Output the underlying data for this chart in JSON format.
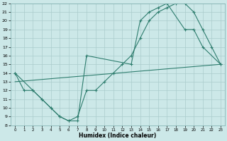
{
  "line1_x": [
    0,
    1,
    2,
    3,
    4,
    5,
    6,
    7,
    8,
    9,
    10,
    11,
    12,
    13,
    14,
    15,
    16,
    17,
    18,
    19,
    20,
    21,
    22,
    23
  ],
  "line1_y": [
    14,
    12,
    12,
    11,
    10,
    9,
    8.5,
    9,
    12,
    12,
    13,
    14,
    15,
    16,
    18,
    20,
    21,
    21.5,
    22,
    22,
    21,
    19,
    17,
    15
  ],
  "line2_x": [
    0,
    2,
    3,
    4,
    5,
    6,
    7,
    8,
    13,
    14,
    15,
    16,
    17,
    19,
    20,
    21,
    23
  ],
  "line2_y": [
    14,
    12,
    11,
    10,
    9,
    8.5,
    8.5,
    16,
    15,
    20,
    21,
    21.5,
    22,
    19,
    19,
    17,
    15
  ],
  "line3_x": [
    0,
    23
  ],
  "line3_y": [
    13,
    15
  ],
  "line_color": "#2e7d6e",
  "bg_color": "#cce8e8",
  "grid_color": "#aacccc",
  "xlabel": "Humidex (Indice chaleur)",
  "xlim": [
    -0.5,
    23.5
  ],
  "ylim": [
    8,
    22
  ],
  "yticks": [
    8,
    9,
    10,
    11,
    12,
    13,
    14,
    15,
    16,
    17,
    18,
    19,
    20,
    21,
    22
  ],
  "xticks": [
    0,
    1,
    2,
    3,
    4,
    5,
    6,
    7,
    8,
    9,
    10,
    11,
    12,
    13,
    14,
    15,
    16,
    17,
    18,
    19,
    20,
    21,
    22,
    23
  ]
}
